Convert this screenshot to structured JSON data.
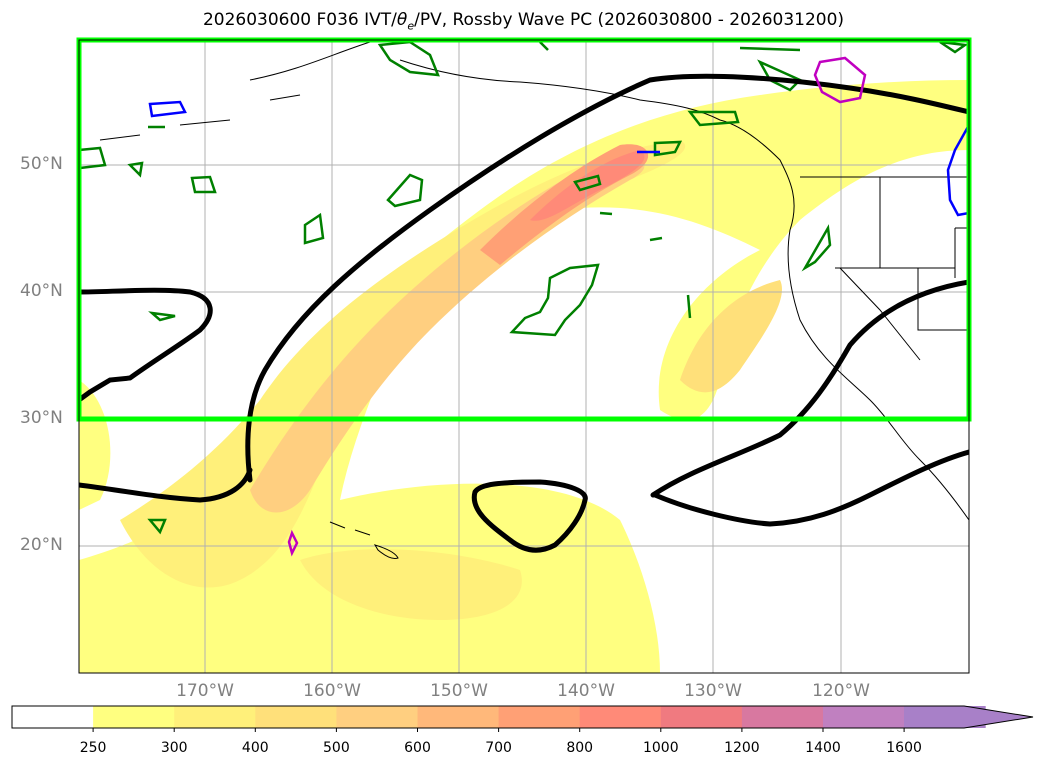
{
  "title_prefix": "2026030600 F036 IVT/",
  "title_theta": "θ",
  "title_sub": "e",
  "title_suffix": "/PV, Rossby Wave PC (2026030800 - 2026031200)",
  "lat_labels": [
    "50°N",
    "40°N",
    "30°N",
    "20°N"
  ],
  "lon_labels": [
    "170°W",
    "160°W",
    "150°W",
    "140°W",
    "130°W",
    "120°W"
  ],
  "colorbar": {
    "ticks": [
      "250",
      "300",
      "400",
      "500",
      "600",
      "700",
      "800",
      "1000",
      "1200",
      "1400",
      "1600"
    ],
    "colors": [
      "#ffffff",
      "#ffff80",
      "#fff07a",
      "#ffe07a",
      "#ffcf80",
      "#ffb87a",
      "#ffa075",
      "#ff8a78",
      "#f07a80",
      "#d878a0",
      "#c080c0",
      "#a880c8"
    ]
  },
  "legend_colors": {
    "pv_contour": "#000000",
    "theta_e": "#008000",
    "region_box": "#00ff00",
    "blue_contour": "#0000ff",
    "magenta_contour": "#c000c0"
  }
}
